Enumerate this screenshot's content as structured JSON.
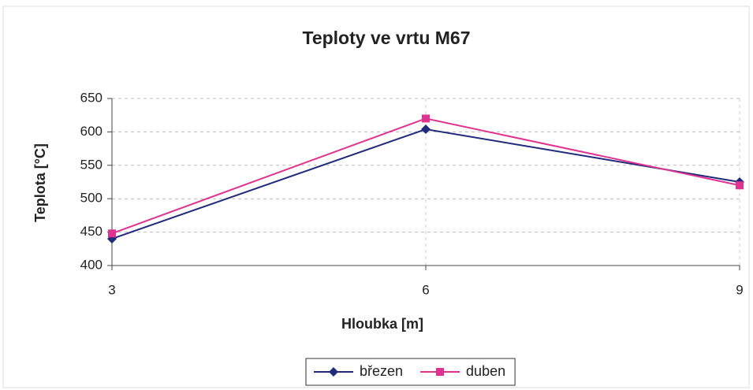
{
  "chart_data": {
    "type": "line",
    "title": "Teploty ve vrtu M67",
    "x_label": "Hloubka [m]",
    "y_label": "Teplota [°C]",
    "x": [
      3,
      6,
      9
    ],
    "series": [
      {
        "name": "březen",
        "color": "#1f2a7a",
        "marker": "diamond",
        "values": [
          440,
          604,
          525
        ]
      },
      {
        "name": "duben",
        "color": "#e0338f",
        "marker": "square",
        "values": [
          448,
          620,
          520
        ]
      }
    ],
    "xlim": [
      3,
      9
    ],
    "xticks": [
      3,
      6,
      9
    ],
    "ylim": [
      400,
      650
    ],
    "yticks": [
      400,
      450,
      500,
      550,
      600,
      650
    ],
    "grid": true,
    "legend": "bottom"
  }
}
